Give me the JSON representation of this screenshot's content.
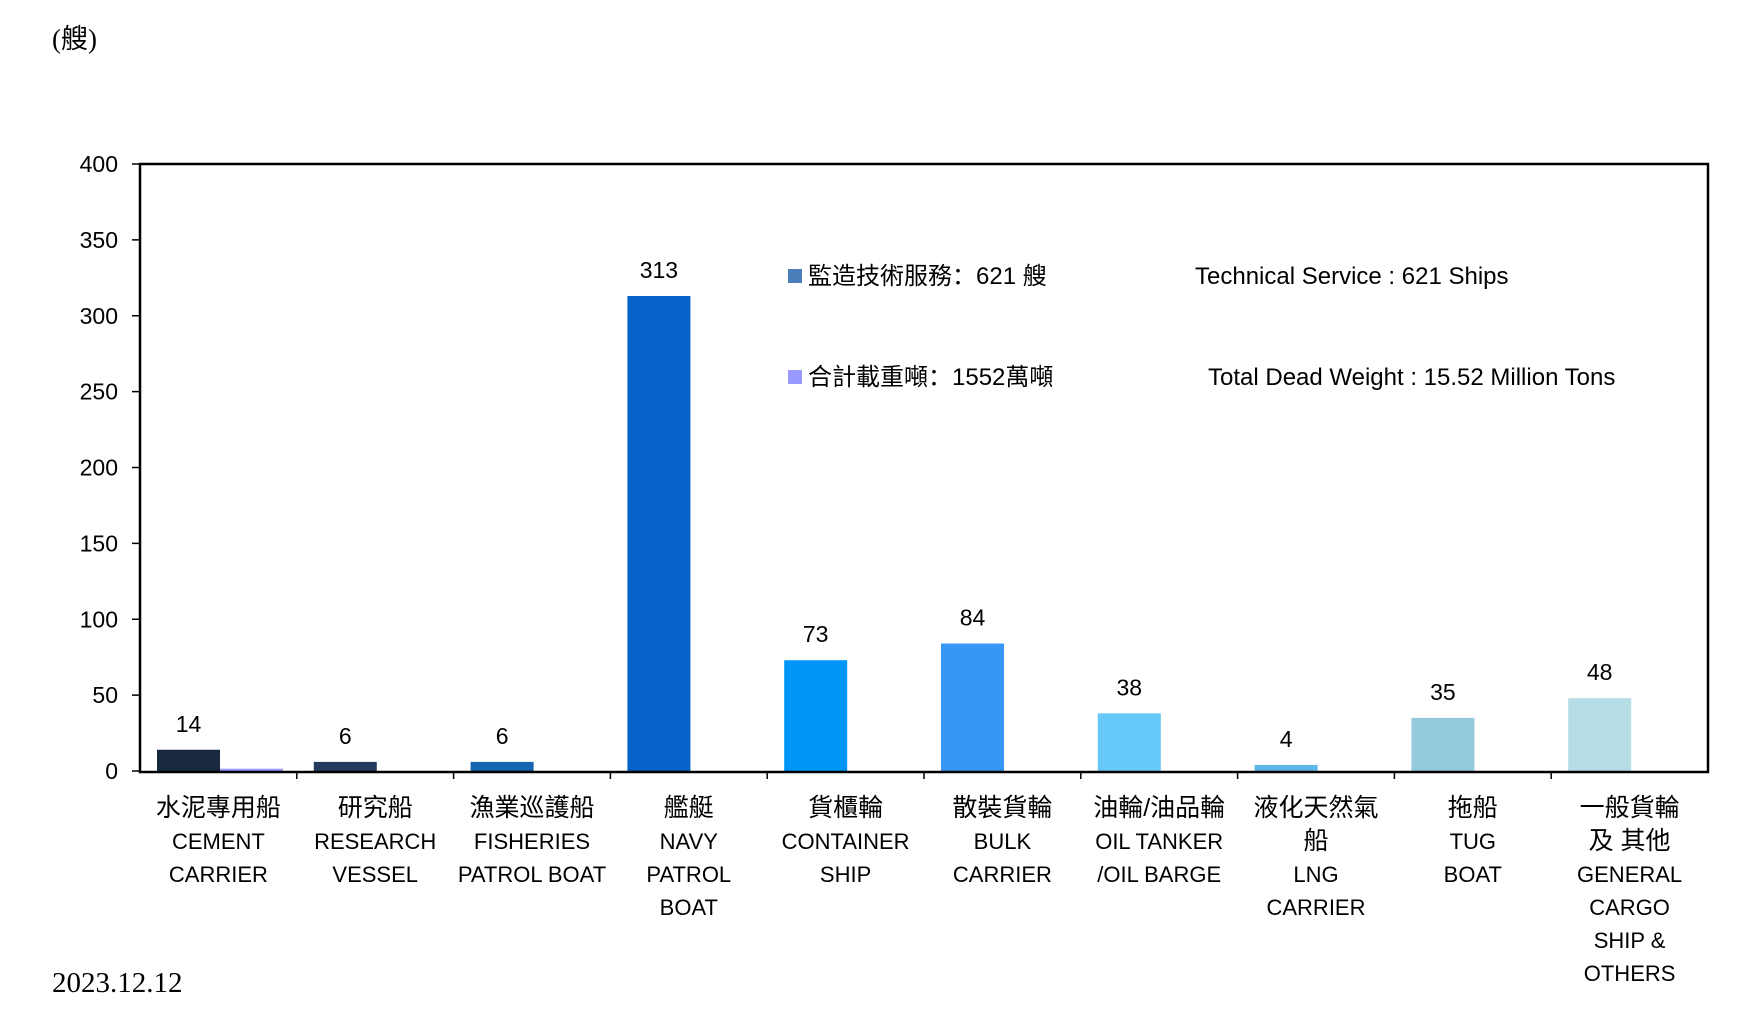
{
  "unit_label": "(艘)",
  "date_label": "2023.12.12",
  "legend": [
    {
      "marker_color": "#4a7ebb",
      "zh": "監造技術服務：621 艘",
      "en": "Technical Service : 621 Ships"
    },
    {
      "marker_color": "#9999ff",
      "zh": "合計載重噸：1552萬噸",
      "en": "Total Dead Weight : 15.52 Million Tons"
    }
  ],
  "chart_data": {
    "type": "bar",
    "ylim": [
      0,
      400
    ],
    "yticks": [
      0,
      50,
      100,
      150,
      200,
      250,
      300,
      350,
      400
    ],
    "categories": [
      {
        "lines": [
          "水泥專用船",
          "CEMENT",
          "CARRIER"
        ]
      },
      {
        "lines": [
          "研究船",
          "RESEARCH",
          "VESSEL"
        ]
      },
      {
        "lines": [
          "漁業巡護船",
          "FISHERIES",
          "PATROL BOAT"
        ]
      },
      {
        "lines": [
          "艦艇",
          "NAVY",
          "PATROL",
          "BOAT"
        ]
      },
      {
        "lines": [
          "貨櫃輪",
          "CONTAINER",
          "SHIP"
        ]
      },
      {
        "lines": [
          "散裝貨輪",
          "BULK",
          "CARRIER"
        ]
      },
      {
        "lines": [
          "油輪/油品輪",
          "OIL TANKER",
          "/OIL BARGE"
        ]
      },
      {
        "lines": [
          "液化天然氣",
          "船",
          "LNG",
          "CARRIER"
        ]
      },
      {
        "lines": [
          "拖船",
          "TUG",
          "BOAT"
        ]
      },
      {
        "lines": [
          "一般貨輪",
          "及 其他",
          "GENERAL",
          "CARGO",
          "SHIP &",
          "OTHERS"
        ]
      }
    ],
    "series": [
      {
        "values": [
          14,
          6,
          6,
          313,
          73,
          84,
          38,
          4,
          35,
          48
        ],
        "data_labels": [
          "14",
          "6",
          "6",
          "313",
          "73",
          "84",
          "38",
          "4",
          "35",
          "48"
        ],
        "colors": [
          "#17283f",
          "#243b5e",
          "#1565b0",
          "#0563c9",
          "#0095f7",
          "#3797f5",
          "#66c9f8",
          "#5eb6e8",
          "#93cbdc",
          "#b6dde6"
        ]
      },
      {
        "values": [
          1.5,
          0,
          0,
          0,
          0,
          0,
          0,
          0,
          0,
          0
        ],
        "color": "#9999ff"
      }
    ]
  }
}
